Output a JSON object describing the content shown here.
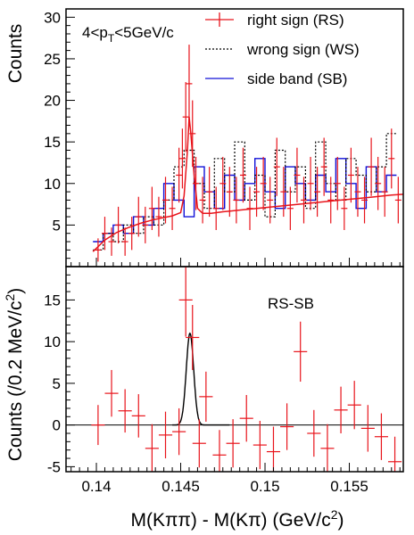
{
  "chart_data": [
    {
      "type": "line",
      "panel": "top",
      "ylabel": "Counts",
      "ylim": [
        0,
        31
      ],
      "xlim": [
        0.1382,
        0.1582
      ],
      "yticks": [
        5,
        10,
        15,
        20,
        25,
        30
      ],
      "annotation_parts": [
        "4<p",
        "T",
        "<5GeV/c"
      ],
      "legend_placement": "top-right",
      "series": [
        {
          "name": "right sign (RS)",
          "style": "points-with-errors",
          "color": "#e8141b",
          "x": [
            0.1401,
            0.1405,
            0.1409,
            0.1413,
            0.1417,
            0.1421,
            0.1425,
            0.1429,
            0.1433,
            0.1437,
            0.1441,
            0.1445,
            0.1449,
            0.1451,
            0.1453,
            0.1455,
            0.1457,
            0.1459,
            0.1463,
            0.1467,
            0.1471,
            0.1475,
            0.1479,
            0.1483,
            0.1487,
            0.1491,
            0.1495,
            0.1499,
            0.1503,
            0.1507,
            0.1511,
            0.1515,
            0.1519,
            0.1523,
            0.1527,
            0.1531,
            0.1535,
            0.1539,
            0.1543,
            0.1547,
            0.1551,
            0.1555,
            0.1559,
            0.1563,
            0.1567,
            0.1571,
            0.1575,
            0.1579
          ],
          "y": [
            2,
            4,
            3,
            5,
            3,
            4,
            6,
            5,
            7,
            6,
            8,
            7,
            11,
            13,
            18,
            22,
            16,
            10,
            8,
            9,
            7,
            10,
            9,
            8,
            11,
            7,
            9,
            10,
            8,
            12,
            9,
            7,
            11,
            8,
            10,
            9,
            12,
            8,
            10,
            7,
            11,
            9,
            8,
            12,
            10,
            9,
            13,
            8
          ],
          "yerr": [
            1.4,
            2,
            1.7,
            2.2,
            1.7,
            2,
            2.4,
            2.2,
            2.6,
            2.4,
            2.8,
            2.6,
            3.3,
            3.6,
            4.2,
            4.7,
            4,
            3.2,
            2.8,
            3,
            2.6,
            3.2,
            3,
            2.8,
            3.3,
            2.6,
            3,
            3.2,
            2.8,
            3.5,
            3,
            2.6,
            3.3,
            2.8,
            3.2,
            3,
            3.5,
            2.8,
            3.2,
            2.6,
            3.3,
            3,
            2.8,
            3.5,
            3.2,
            3,
            3.6,
            2.8
          ]
        },
        {
          "name": "wrong sign (WS)",
          "style": "dotted-histogram",
          "color": "#000000",
          "x": [
            0.1401,
            0.1407,
            0.1413,
            0.1419,
            0.1425,
            0.1431,
            0.1437,
            0.1443,
            0.1449,
            0.1455,
            0.1461,
            0.1467,
            0.1473,
            0.1479,
            0.1485,
            0.1491,
            0.1497,
            0.1503,
            0.1509,
            0.1515,
            0.1521,
            0.1527,
            0.1533,
            0.1539,
            0.1545,
            0.1551,
            0.1557,
            0.1563,
            0.1569,
            0.1575
          ],
          "y": [
            2,
            4,
            3,
            5,
            4,
            6,
            5,
            8,
            12,
            14,
            10,
            7,
            13,
            9,
            15,
            8,
            11,
            6,
            14,
            9,
            12,
            7,
            15,
            10,
            8,
            13,
            11,
            9,
            12,
            16
          ]
        },
        {
          "name": "side band (SB)",
          "style": "histogram",
          "color": "#1010d8",
          "x": [
            0.1401,
            0.1407,
            0.1413,
            0.1419,
            0.1425,
            0.1431,
            0.1437,
            0.1443,
            0.1449,
            0.1455,
            0.1461,
            0.1467,
            0.1473,
            0.1479,
            0.1485,
            0.1491,
            0.1497,
            0.1503,
            0.1509,
            0.1515,
            0.1521,
            0.1527,
            0.1533,
            0.1539,
            0.1545,
            0.1551,
            0.1557,
            0.1563,
            0.1569,
            0.1575
          ],
          "y": [
            3,
            4,
            5,
            4,
            6,
            5,
            7,
            10,
            8,
            6,
            12,
            9,
            7,
            11,
            8,
            10,
            13,
            9,
            7,
            12,
            10,
            8,
            11,
            9,
            13,
            10,
            7,
            12,
            9,
            11
          ]
        },
        {
          "name": "",
          "style": "fit-curve",
          "color": "#e8141b",
          "x": [
            0.1398,
            0.1405,
            0.1412,
            0.1419,
            0.1426,
            0.1433,
            0.144,
            0.1445,
            0.145,
            0.1452,
            0.1454,
            0.1455,
            0.1456,
            0.1458,
            0.146,
            0.1463,
            0.1468,
            0.1475,
            0.1485,
            0.1495,
            0.1505,
            0.1515,
            0.1525,
            0.1535,
            0.1545,
            0.1555,
            0.1565,
            0.1575,
            0.1582
          ],
          "y": [
            1.8,
            3.2,
            4.1,
            4.7,
            5.2,
            5.6,
            5.9,
            6.1,
            6.5,
            8.5,
            14,
            18,
            16,
            11,
            7,
            6.4,
            6.4,
            6.6,
            6.8,
            7,
            7.2,
            7.4,
            7.6,
            7.8,
            8,
            8.2,
            8.4,
            8.6,
            8.7
          ]
        }
      ]
    },
    {
      "type": "scatter",
      "panel": "bottom",
      "ylabel_parts": [
        "Counts (/0.2 MeV/c",
        "2",
        ")"
      ],
      "xlabel_parts": [
        "M(Kππ) - M(Kπ) (GeV/c",
        "2",
        ")"
      ],
      "ylim": [
        -5.6,
        19
      ],
      "xlim": [
        0.1382,
        0.1582
      ],
      "yticks": [
        -5,
        0,
        5,
        10,
        15
      ],
      "xticks": [
        0.14,
        0.145,
        0.15,
        0.155
      ],
      "xtick_labels": [
        "0.14",
        "0.145",
        "0.15",
        "0.155"
      ],
      "annotation": "RS-SB",
      "series": [
        {
          "name": "RS-SB",
          "style": "points-with-errors",
          "color": "#e8141b",
          "x": [
            0.1401,
            0.1409,
            0.1417,
            0.1425,
            0.1433,
            0.1441,
            0.1449,
            0.1453,
            0.1457,
            0.1461,
            0.1465,
            0.1473,
            0.1481,
            0.1489,
            0.1497,
            0.1505,
            0.1513,
            0.1521,
            0.1529,
            0.1537,
            0.1545,
            0.1553,
            0.1561,
            0.1569,
            0.1577
          ],
          "y": [
            0,
            3.8,
            1.7,
            1.1,
            -2.8,
            -1.2,
            -0.8,
            15,
            10.5,
            -2.2,
            3.4,
            -3.6,
            -2.2,
            0.8,
            -2.4,
            -3.2,
            -0.2,
            8.8,
            -1,
            -2.8,
            1.8,
            2.4,
            -0.4,
            -1.4,
            -4.4
          ],
          "yerr": [
            2.4,
            2.8,
            2.6,
            2.6,
            2.9,
            2.8,
            2.8,
            4.4,
            3.9,
            2.9,
            3,
            3,
            2.9,
            2.8,
            2.9,
            3,
            2.8,
            3.6,
            2.8,
            2.9,
            2.8,
            2.9,
            2.8,
            2.8,
            3
          ]
        },
        {
          "name": "",
          "style": "gaussian-fit",
          "color": "#000000",
          "mean": 0.14555,
          "sigma": 0.00022,
          "amplitude": 11,
          "xrange": [
            0.1445,
            0.1479
          ]
        }
      ]
    }
  ]
}
